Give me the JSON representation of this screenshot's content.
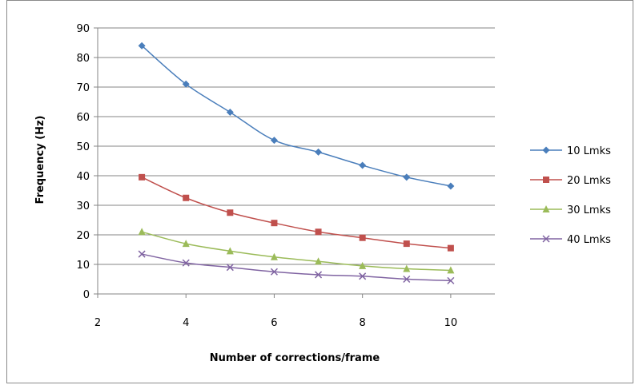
{
  "chart_data": {
    "type": "line",
    "title": "",
    "xlabel": "Number of corrections/frame",
    "ylabel": "Frequency (Hz)",
    "xlim": [
      2,
      11
    ],
    "ylim": [
      0,
      90
    ],
    "xticks": [
      2,
      4,
      6,
      8,
      10
    ],
    "yticks": [
      0,
      10,
      20,
      30,
      40,
      50,
      60,
      70,
      80,
      90
    ],
    "grid": "horizontal",
    "legend_position": "right",
    "x": [
      3,
      4,
      5,
      6,
      7,
      8,
      9,
      10
    ],
    "series": [
      {
        "name": "10 Lmks",
        "color": "#4a7ebb",
        "marker": "diamond",
        "values": [
          84,
          71,
          61.5,
          52,
          48,
          43.5,
          39.5,
          36.5
        ]
      },
      {
        "name": "20 Lmks",
        "color": "#c0504d",
        "marker": "square",
        "values": [
          39.5,
          32.5,
          27.5,
          24,
          21,
          19,
          17,
          15.5
        ]
      },
      {
        "name": "30 Lmks",
        "color": "#9bbb59",
        "marker": "triangle",
        "values": [
          21,
          17,
          14.5,
          12.5,
          11,
          9.5,
          8.5,
          8
        ]
      },
      {
        "name": "40 Lmks",
        "color": "#8064a2",
        "marker": "x",
        "values": [
          13.5,
          10.5,
          9,
          7.5,
          6.5,
          6,
          5,
          4.5
        ]
      }
    ]
  }
}
